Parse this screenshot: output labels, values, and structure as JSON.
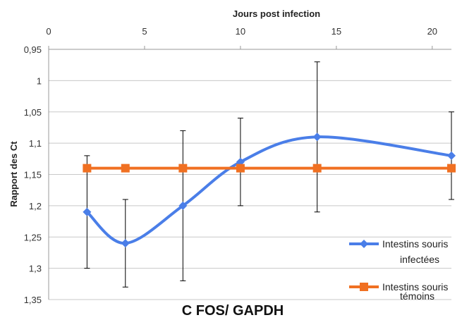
{
  "chart_data": {
    "type": "line",
    "title": "C FOS/ GAPDH",
    "xlabel": "Jours post infection",
    "ylabel": "Rapport des Ct",
    "x_axis_position": "top",
    "y_axis_reversed": true,
    "xlim": [
      0,
      21
    ],
    "ylim": [
      0.95,
      1.35
    ],
    "x_ticks": [
      0,
      5,
      10,
      15,
      20
    ],
    "x_tick_labels": [
      "0",
      "5",
      "10",
      "15",
      "20"
    ],
    "y_ticks": [
      0.95,
      1.0,
      1.05,
      1.1,
      1.15,
      1.2,
      1.25,
      1.3,
      1.35
    ],
    "y_tick_labels": [
      "0,95",
      "1",
      "1,05",
      "1,1",
      "1,15",
      "1,2",
      "1,25",
      "1,3",
      "1,35"
    ],
    "grid": "horizontal",
    "legend_position": "bottom-right",
    "series": [
      {
        "name": "Intestins souris infectées",
        "legend_lines": [
          "Intestins souris",
          "infectées"
        ],
        "color": "#4a7ee8",
        "marker": "diamond",
        "smooth": true,
        "x": [
          2,
          4,
          7,
          10,
          14,
          21
        ],
        "y": [
          1.21,
          1.26,
          1.2,
          1.13,
          1.09,
          1.12
        ],
        "error_low": [
          1.12,
          1.19,
          1.08,
          1.06,
          0.97,
          1.05
        ],
        "error_high": [
          1.3,
          1.33,
          1.32,
          1.2,
          1.21,
          1.19
        ]
      },
      {
        "name": "Intestins souris témoins",
        "legend_lines": [
          "Intestins souris",
          "témoins"
        ],
        "color": "#f07022",
        "marker": "square",
        "smooth": false,
        "x": [
          2,
          4,
          7,
          10,
          14,
          21
        ],
        "y": [
          1.14,
          1.14,
          1.14,
          1.14,
          1.14,
          1.14
        ]
      }
    ]
  }
}
